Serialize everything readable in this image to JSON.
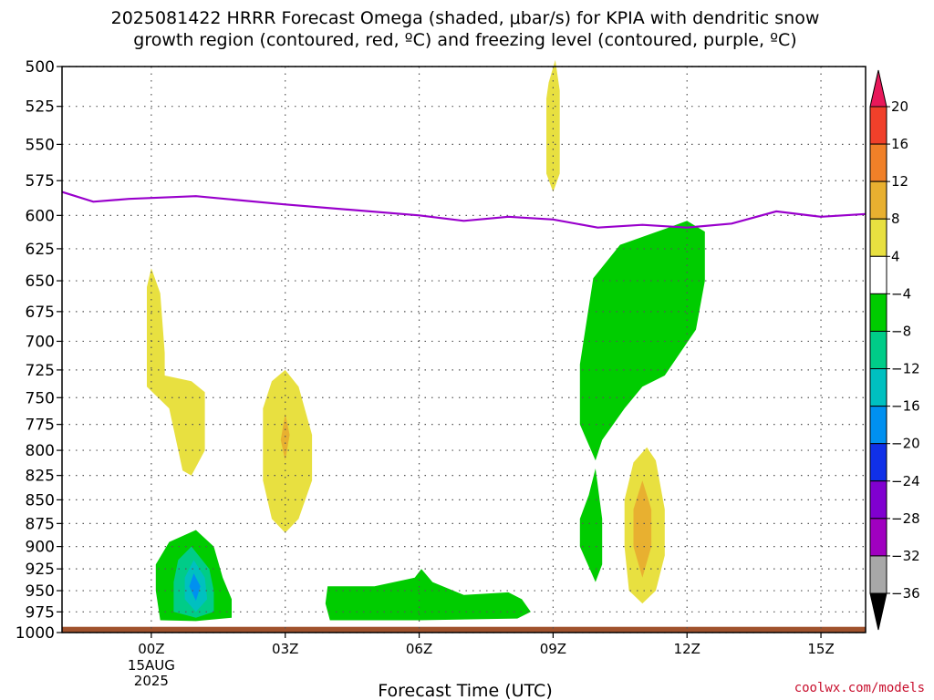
{
  "title_lines": [
    "2025081422 HRRR Forecast Omega (shaded, μbar/s) for KPIA with dendritic snow",
    "growth region (contoured, red, ºC) and freezing level (contoured, purple, ºC)"
  ],
  "credit": "coolwx.com/models",
  "credit_color": "#c8102e",
  "chart_data": {
    "type": "time-height cross section",
    "title": "2025081422 HRRR Forecast Omega (shaded, μbar/s) for KPIA with dendritic snow growth region (contoured, red, ºC) and freezing level (contoured, purple, ºC)",
    "xlabel": "Forecast Time (UTC)",
    "ylabel": "",
    "x_unit": "hours relative to 2025-08-15 00Z",
    "xlim": [
      -2,
      16
    ],
    "x_ticks": [
      {
        "x": 0,
        "label": "00Z",
        "sublabels": [
          "15AUG",
          "2025"
        ]
      },
      {
        "x": 3,
        "label": "03Z"
      },
      {
        "x": 6,
        "label": "06Z"
      },
      {
        "x": 9,
        "label": "09Z"
      },
      {
        "x": 12,
        "label": "12Z"
      },
      {
        "x": 15,
        "label": "15Z"
      }
    ],
    "y_unit": "hPa",
    "y_scale": "log",
    "ylim": [
      1000,
      500
    ],
    "y_ticks": [
      500,
      525,
      550,
      575,
      600,
      625,
      650,
      675,
      700,
      725,
      750,
      775,
      800,
      825,
      850,
      875,
      900,
      925,
      950,
      975,
      1000
    ],
    "grid": true,
    "colorbar": {
      "labels": [
        "20",
        "16",
        "12",
        "8",
        "4",
        "−4",
        "−8",
        "−12",
        "−16",
        "−20",
        "−24",
        "−28",
        "−32",
        "−36"
      ],
      "colors": [
        "#e8185a",
        "#f0402a",
        "#f08028",
        "#e8b030",
        "#e8e040",
        "#ffffff",
        "#00cc00",
        "#00cc88",
        "#00c0c0",
        "#0090f0",
        "#1030e8",
        "#8000d0",
        "#a000c0",
        "#a8a8a8",
        "#000000"
      ]
    },
    "freezing_level": {
      "color": "#9900cc",
      "points": [
        [
          -2,
          583
        ],
        [
          -1.3,
          590
        ],
        [
          -0.5,
          588
        ],
        [
          1,
          586
        ],
        [
          3,
          592
        ],
        [
          6,
          600
        ],
        [
          7,
          604
        ],
        [
          8,
          601
        ],
        [
          9,
          603
        ],
        [
          10,
          609
        ],
        [
          11,
          607
        ],
        [
          12,
          609
        ],
        [
          13,
          606
        ],
        [
          14,
          597
        ],
        [
          15,
          601
        ],
        [
          16,
          599
        ]
      ]
    },
    "ground": {
      "color": "#a0522d",
      "pressure": 993
    },
    "omega_regions": [
      {
        "name": "upward-weak-1",
        "color": "#e8e040",
        "points": [
          [
            -0.1,
            655
          ],
          [
            0.0,
            640
          ],
          [
            0.2,
            660
          ],
          [
            0.3,
            710
          ],
          [
            0.3,
            730
          ],
          [
            0.9,
            735
          ],
          [
            1.2,
            745
          ],
          [
            1.2,
            800
          ],
          [
            0.9,
            825
          ],
          [
            0.7,
            820
          ],
          [
            0.4,
            760
          ],
          [
            -0.1,
            740
          ]
        ]
      },
      {
        "name": "upward-weak-2",
        "color": "#e8e040",
        "points": [
          [
            3.0,
            725
          ],
          [
            3.3,
            740
          ],
          [
            3.6,
            785
          ],
          [
            3.6,
            830
          ],
          [
            3.3,
            870
          ],
          [
            3.0,
            885
          ],
          [
            2.7,
            870
          ],
          [
            2.5,
            830
          ],
          [
            2.5,
            760
          ],
          [
            2.7,
            735
          ]
        ]
      },
      {
        "name": "upward-mod-2",
        "color": "#e8b030",
        "points": [
          [
            3.0,
            765
          ],
          [
            3.1,
            785
          ],
          [
            3.0,
            810
          ],
          [
            2.9,
            790
          ]
        ]
      },
      {
        "name": "upward-weak-3",
        "color": "#e8e040",
        "points": [
          [
            8.9,
            510
          ],
          [
            9.05,
            496
          ],
          [
            9.15,
            515
          ],
          [
            9.15,
            570
          ],
          [
            9.0,
            583
          ],
          [
            8.85,
            570
          ],
          [
            8.85,
            520
          ]
        ]
      },
      {
        "name": "upward-weak-4",
        "color": "#e8e040",
        "points": [
          [
            11.1,
            797
          ],
          [
            11.3,
            810
          ],
          [
            11.5,
            860
          ],
          [
            11.5,
            910
          ],
          [
            11.3,
            950
          ],
          [
            11.0,
            965
          ],
          [
            10.7,
            950
          ],
          [
            10.6,
            900
          ],
          [
            10.6,
            850
          ],
          [
            10.8,
            812
          ]
        ]
      },
      {
        "name": "upward-mod-4",
        "color": "#e8b030",
        "points": [
          [
            11.0,
            830
          ],
          [
            11.2,
            860
          ],
          [
            11.2,
            900
          ],
          [
            11.0,
            935
          ],
          [
            10.8,
            900
          ],
          [
            10.8,
            860
          ]
        ]
      },
      {
        "name": "downward-weak-1",
        "color": "#00cc00",
        "points": [
          [
            1.0,
            882
          ],
          [
            1.4,
            900
          ],
          [
            1.6,
            935
          ],
          [
            1.8,
            960
          ],
          [
            1.8,
            982
          ],
          [
            1.0,
            986
          ],
          [
            0.2,
            985
          ],
          [
            0.1,
            950
          ],
          [
            0.1,
            920
          ],
          [
            0.4,
            895
          ]
        ]
      },
      {
        "name": "downward-mod-1",
        "color": "#00cc88",
        "points": [
          [
            0.9,
            900
          ],
          [
            1.3,
            925
          ],
          [
            1.4,
            950
          ],
          [
            1.4,
            975
          ],
          [
            1.0,
            982
          ],
          [
            0.5,
            975
          ],
          [
            0.5,
            940
          ],
          [
            0.6,
            915
          ]
        ]
      },
      {
        "name": "downward-strong-1",
        "color": "#00c0c0",
        "points": [
          [
            0.95,
            915
          ],
          [
            1.2,
            935
          ],
          [
            1.25,
            960
          ],
          [
            1.0,
            975
          ],
          [
            0.75,
            960
          ],
          [
            0.75,
            935
          ]
        ]
      },
      {
        "name": "downward-strongest-1",
        "color": "#0090f0",
        "points": [
          [
            0.95,
            930
          ],
          [
            1.1,
            945
          ],
          [
            1.0,
            962
          ],
          [
            0.85,
            945
          ]
        ]
      },
      {
        "name": "downward-weak-2",
        "color": "#00cc00",
        "points": [
          [
            3.95,
            945
          ],
          [
            5.0,
            945
          ],
          [
            5.9,
            935
          ],
          [
            6.05,
            925
          ],
          [
            6.3,
            940
          ],
          [
            7.0,
            955
          ],
          [
            8.0,
            952
          ],
          [
            8.3,
            960
          ],
          [
            8.5,
            975
          ],
          [
            8.2,
            983
          ],
          [
            6.0,
            985
          ],
          [
            4.0,
            985
          ],
          [
            3.9,
            965
          ]
        ]
      },
      {
        "name": "downward-weak-3",
        "color": "#00cc00",
        "points": [
          [
            9.9,
            648
          ],
          [
            10.5,
            622
          ],
          [
            11.5,
            610
          ],
          [
            12.0,
            604
          ],
          [
            12.4,
            612
          ],
          [
            12.4,
            650
          ],
          [
            12.2,
            690
          ],
          [
            11.5,
            730
          ],
          [
            11.0,
            740
          ],
          [
            10.6,
            760
          ],
          [
            10.1,
            790
          ],
          [
            9.95,
            810
          ],
          [
            9.6,
            775
          ],
          [
            9.6,
            720
          ]
        ]
      },
      {
        "name": "downward-weak-4",
        "color": "#00cc00",
        "points": [
          [
            9.95,
            818
          ],
          [
            10.1,
            870
          ],
          [
            10.1,
            920
          ],
          [
            9.95,
            940
          ],
          [
            9.6,
            900
          ],
          [
            9.6,
            870
          ],
          [
            9.8,
            845
          ]
        ]
      }
    ]
  }
}
